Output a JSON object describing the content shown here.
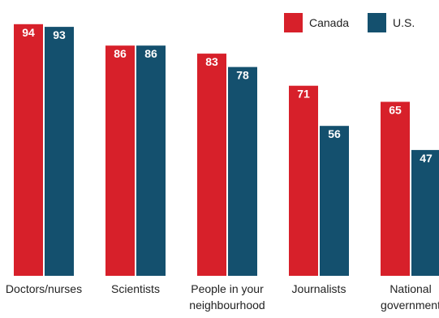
{
  "colors": {
    "canada": "#d7202a",
    "us": "#14506e"
  },
  "chart_data": {
    "type": "bar",
    "categories": [
      [
        "Doctors/nurses"
      ],
      [
        "Scientists"
      ],
      [
        "People in your",
        "neighbourhood"
      ],
      [
        "Journalists"
      ],
      [
        "National",
        "government"
      ]
    ],
    "series": [
      {
        "name": "Canada",
        "values": [
          94,
          86,
          83,
          71,
          65
        ]
      },
      {
        "name": "U.S.",
        "values": [
          93,
          86,
          78,
          56,
          47
        ]
      }
    ],
    "ylim": [
      0,
      100
    ],
    "legend": "top-right",
    "grid": false
  }
}
